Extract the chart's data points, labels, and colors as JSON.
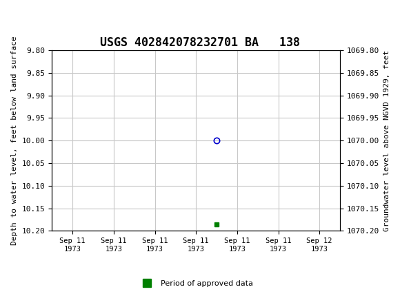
{
  "title": "USGS 402842078232701 BA   138",
  "xlabel_dates": [
    "Sep 11\n1973",
    "Sep 11\n1973",
    "Sep 11\n1973",
    "Sep 11\n1973",
    "Sep 11\n1973",
    "Sep 11\n1973",
    "Sep 12\n1973"
  ],
  "ylim_left": [
    9.8,
    10.2
  ],
  "ylim_right": [
    1069.8,
    1070.2
  ],
  "yticks_left": [
    9.8,
    9.85,
    9.9,
    9.95,
    10.0,
    10.05,
    10.1,
    10.15,
    10.2
  ],
  "yticks_right": [
    1069.8,
    1069.85,
    1069.9,
    1069.95,
    1070.0,
    1070.05,
    1070.1,
    1070.15,
    1070.2
  ],
  "ylabel_left": "Depth to water level, feet below land surface",
  "ylabel_right": "Groundwater level above NGVD 1929, feet",
  "point_x": 3.5,
  "point_y": 10.0,
  "point_color": "#0000cd",
  "green_square_x": 3.5,
  "green_square_y": 10.185,
  "green_color": "#008000",
  "header_color": "#006644",
  "background_color": "#ffffff",
  "grid_color": "#c8c8c8",
  "legend_label": "Period of approved data",
  "font_family": "monospace",
  "x_positions": [
    0,
    1,
    2,
    3,
    4,
    5,
    6
  ],
  "xlim": [
    -0.5,
    6.5
  ]
}
